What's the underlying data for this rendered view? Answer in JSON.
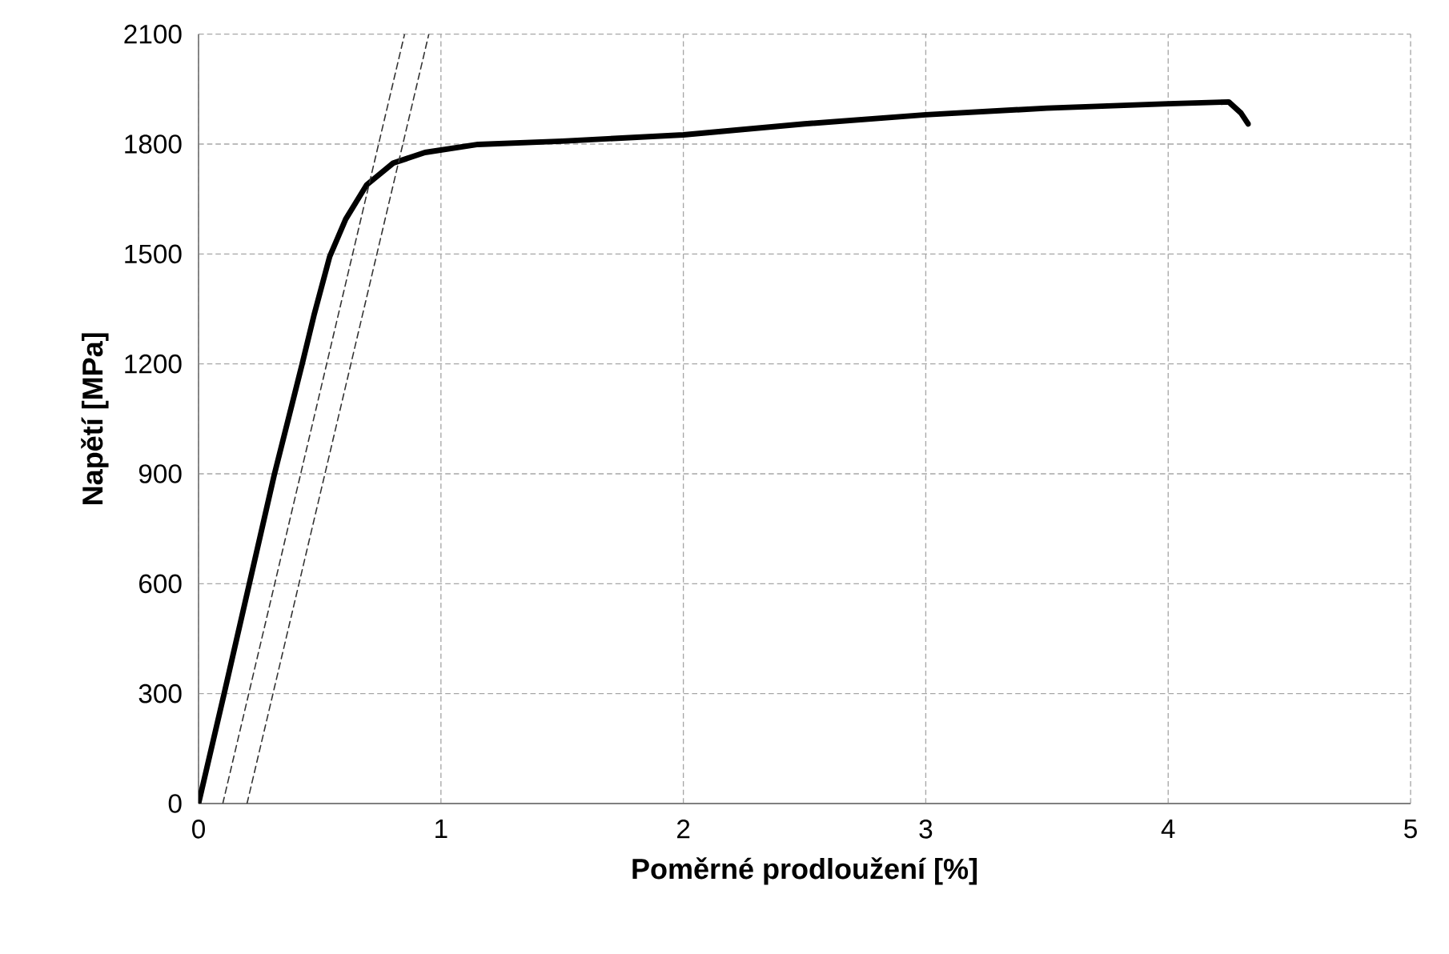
{
  "chart_data": {
    "type": "line",
    "xlabel": "Poměrné prodloužení [%]",
    "ylabel": "Napětí [MPa]",
    "xlim": [
      0,
      5
    ],
    "xticks": [
      0,
      1,
      2,
      3,
      4,
      5
    ],
    "ylim": [
      0,
      2100
    ],
    "yticks": [
      0,
      300,
      600,
      900,
      1200,
      1500,
      1800,
      2100
    ],
    "grid": true,
    "marker": "none",
    "series": [
      {
        "color": "#000000",
        "line_style": "solid",
        "x": [
          0,
          0.105,
          0.312,
          0.428,
          0.476,
          0.541,
          0.607,
          0.694,
          0.803,
          0.934,
          1.153,
          1.5,
          2,
          2.5,
          3,
          3.5,
          4,
          4.25,
          4.3,
          4.33
        ],
        "values": [
          0,
          298,
          896,
          1201,
          1332,
          1493,
          1595,
          1689,
          1748,
          1777,
          1799,
          1808,
          1825,
          1855,
          1880,
          1898,
          1910,
          1915,
          1885,
          1855
        ]
      },
      {
        "color": "#333333",
        "line_style": "dashed",
        "x": [
          0.1,
          0.85
        ],
        "values": [
          0,
          2100
        ]
      },
      {
        "color": "#333333",
        "line_style": "dashed",
        "x": [
          0.2,
          0.95
        ],
        "values": [
          0,
          2100
        ]
      }
    ]
  }
}
